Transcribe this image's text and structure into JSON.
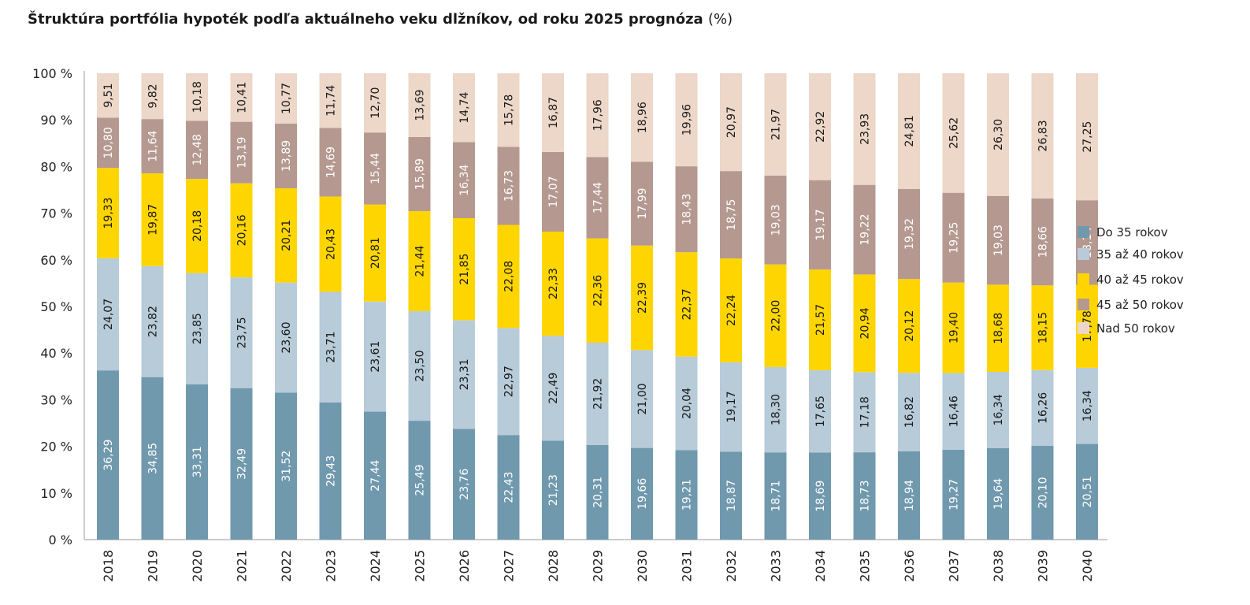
{
  "chart_data": {
    "type": "bar",
    "stacked": true,
    "title": "Štruktúra portfólia hypoték podľa aktuálneho veku dlžníkov, od roku 2025 prognóza",
    "title_unit": "(%)",
    "xlabel": "",
    "ylabel": "",
    "ylim": [
      0,
      100
    ],
    "y_ticks": [
      "0 %",
      "10 %",
      "20 %",
      "30 %",
      "40 %",
      "50 %",
      "60 %",
      "70 %",
      "80 %",
      "90 %",
      "100 %"
    ],
    "grid": false,
    "legend_position": "right",
    "categories": [
      "2018",
      "2019",
      "2020",
      "2021",
      "2022",
      "2023",
      "2024",
      "2025",
      "2026",
      "2027",
      "2028",
      "2029",
      "2030",
      "2031",
      "2032",
      "2033",
      "2034",
      "2035",
      "2036",
      "2037",
      "2038",
      "2039",
      "2040"
    ],
    "series": [
      {
        "name": "Do 35 rokov",
        "color": "#7099ae",
        "label_color": "#ffffff",
        "values": [
          36.29,
          34.85,
          33.31,
          32.49,
          31.52,
          29.43,
          27.44,
          25.49,
          23.76,
          22.43,
          21.23,
          20.31,
          19.66,
          19.21,
          18.87,
          18.71,
          18.69,
          18.73,
          18.94,
          19.27,
          19.64,
          20.1,
          20.51
        ]
      },
      {
        "name": "35 až 40 rokov",
        "color": "#b7cbd8",
        "label_color": "#1a1a1a",
        "values": [
          24.07,
          23.82,
          23.85,
          23.75,
          23.6,
          23.71,
          23.61,
          23.5,
          23.31,
          22.97,
          22.49,
          21.92,
          21.0,
          20.04,
          19.17,
          18.3,
          17.65,
          17.18,
          16.82,
          16.46,
          16.34,
          16.26,
          16.34
        ]
      },
      {
        "name": "40 až 45 rokov",
        "color": "#ffd500",
        "label_color": "#1a1a1a",
        "values": [
          19.33,
          19.87,
          20.18,
          20.16,
          20.21,
          20.43,
          20.81,
          21.44,
          21.85,
          22.08,
          22.33,
          22.36,
          22.39,
          22.37,
          22.24,
          22.0,
          21.57,
          20.94,
          20.12,
          19.4,
          18.68,
          18.15,
          17.78
        ]
      },
      {
        "name": "45 až 50 rokov",
        "color": "#b59990",
        "label_color": "#ffffff",
        "values": [
          10.8,
          11.64,
          12.48,
          13.19,
          13.89,
          14.69,
          15.44,
          15.89,
          16.34,
          16.73,
          17.07,
          17.44,
          17.99,
          18.43,
          18.75,
          19.03,
          19.17,
          19.22,
          19.32,
          19.25,
          19.03,
          18.66,
          18.14
        ]
      },
      {
        "name": "Nad 50 rokov",
        "color": "#ecd7c8",
        "label_color": "#1a1a1a",
        "values": [
          9.51,
          9.82,
          10.18,
          10.41,
          10.77,
          11.74,
          12.7,
          13.69,
          14.74,
          15.78,
          16.87,
          17.96,
          18.96,
          19.96,
          20.97,
          21.97,
          22.92,
          23.93,
          24.81,
          25.62,
          26.3,
          26.83,
          27.25
        ]
      }
    ]
  }
}
